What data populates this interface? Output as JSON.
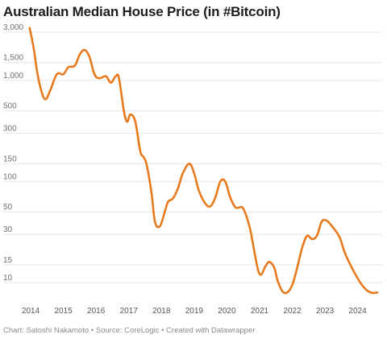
{
  "title": "Australian Median House Price (in #Bitcoin)",
  "footer": {
    "chart_by": "Chart: Satoshi Nakamoto",
    "sep1": " • ",
    "source": "Source: CoreLogic",
    "sep2": " • ",
    "created": "Created with Datawrapper"
  },
  "colors": {
    "line": "#e87a1e",
    "grid": "#e6e6e6",
    "text": "#1d1d1d"
  },
  "chart_data": {
    "type": "line",
    "title": "Australian Median House Price (in #Bitcoin)",
    "yscale": "log",
    "ylim": [
      6.8,
      3600
    ],
    "xlim": [
      2013.9,
      2024.65
    ],
    "y_ticks": [
      3000,
      1500,
      1000,
      500,
      300,
      150,
      100,
      50,
      30,
      15,
      10
    ],
    "y_tick_labels": [
      "3,000",
      "1,500",
      "1,000",
      "500",
      "300",
      "150",
      "100",
      "50",
      "30",
      "15",
      "10"
    ],
    "x_ticks": [
      2014,
      2015,
      2016,
      2017,
      2018,
      2019,
      2020,
      2021,
      2022,
      2023,
      2024
    ],
    "x_tick_labels": [
      "2014",
      "2015",
      "2016",
      "2017",
      "2018",
      "2019",
      "2020",
      "2021",
      "2022",
      "2023",
      "2024"
    ],
    "grid": true,
    "series": [
      {
        "x": [
          2013.97,
          2014.1,
          2014.2,
          2014.32,
          2014.45,
          2014.6,
          2014.8,
          2015.0,
          2015.15,
          2015.35,
          2015.5,
          2015.65,
          2015.8,
          2015.95,
          2016.1,
          2016.3,
          2016.45,
          2016.6,
          2016.7,
          2016.85,
          2016.95,
          2017.05,
          2017.2,
          2017.35,
          2017.45,
          2017.55,
          2017.7,
          2017.8,
          2017.95,
          2018.1,
          2018.2,
          2018.35,
          2018.5,
          2018.65,
          2018.85,
          2019.0,
          2019.15,
          2019.35,
          2019.5,
          2019.65,
          2019.8,
          2019.95,
          2020.1,
          2020.25,
          2020.35,
          2020.5,
          2020.7,
          2020.82,
          2020.95,
          2021.05,
          2021.18,
          2021.3,
          2021.45,
          2021.55,
          2021.7,
          2021.85,
          2022.0,
          2022.15,
          2022.3,
          2022.45,
          2022.6,
          2022.75,
          2022.9,
          2023.05,
          2023.25,
          2023.45,
          2023.6,
          2023.8,
          2024.0,
          2024.15,
          2024.3,
          2024.45,
          2024.6
        ],
        "y": [
          3300,
          2000,
          1200,
          800,
          650,
          800,
          1150,
          1150,
          1350,
          1400,
          1800,
          2000,
          1700,
          1150,
          1050,
          1100,
          950,
          1100,
          1050,
          500,
          390,
          460,
          390,
          200,
          175,
          145,
          75,
          40,
          36,
          50,
          63,
          68,
          85,
          120,
          150,
          120,
          80,
          60,
          57,
          70,
          100,
          100,
          70,
          56,
          55,
          54,
          35,
          22,
          13.5,
          12,
          14.5,
          16,
          14,
          10.5,
          8.2,
          8.0,
          9.5,
          14,
          22,
          29,
          27,
          29,
          40,
          41,
          35,
          28,
          20,
          14.5,
          11,
          9.3,
          8.3,
          7.9,
          8.0
        ],
        "color": "#e87a1e"
      }
    ]
  }
}
